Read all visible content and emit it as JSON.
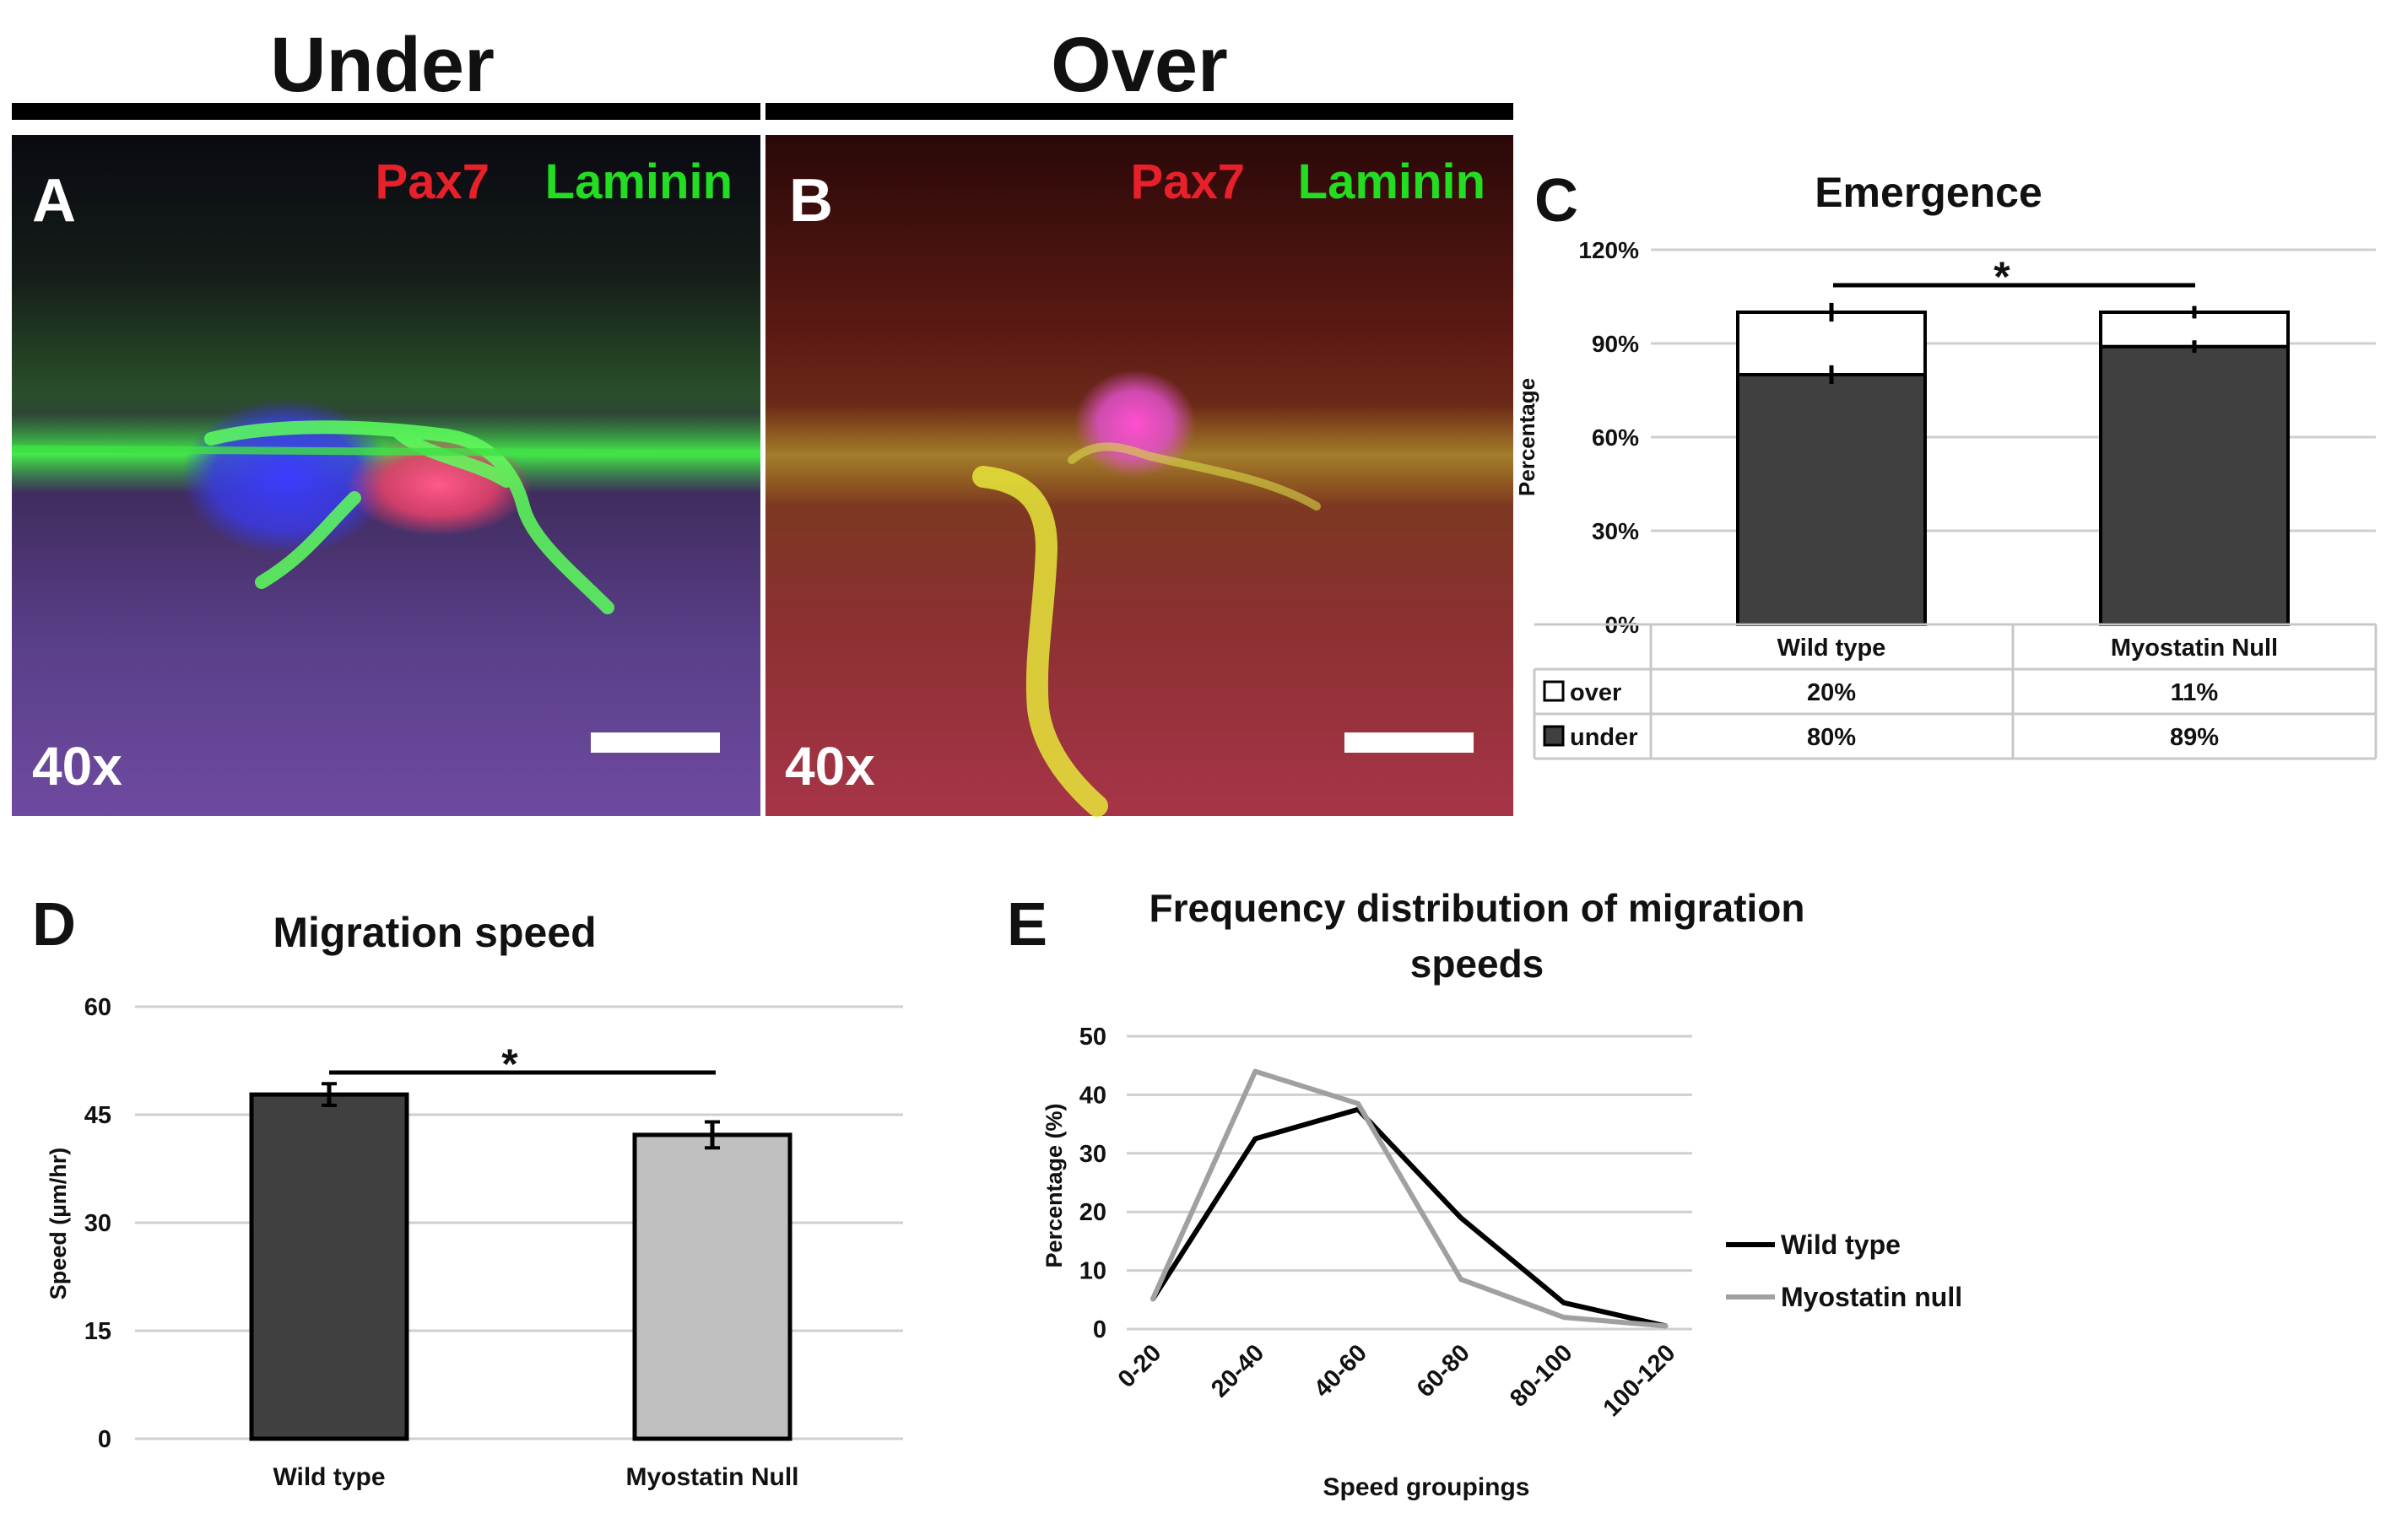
{
  "header": {
    "under_label": "Under",
    "over_label": "Over"
  },
  "micrographs": [
    {
      "panel_letter": "A",
      "stain_red": "Pax7",
      "stain_green": "Laminin",
      "magnification": "40x"
    },
    {
      "panel_letter": "B",
      "stain_red": "Pax7",
      "stain_green": "Laminin",
      "magnification": "40x"
    }
  ],
  "colors": {
    "stain_red": "#e8202a",
    "stain_green": "#22dd22",
    "under_bar": "#404040",
    "wild_type_bar": "#404040",
    "myostatin_bar": "#c0c0c0",
    "wild_type_line": "#000000",
    "myostatin_line": "#a0a0a0",
    "gridline": "#cfcfcf"
  },
  "panel_c": {
    "letter": "C",
    "significance_mark": "*",
    "table_rows": [
      {
        "label": "over",
        "values": [
          "20%",
          "11%"
        ]
      },
      {
        "label": "under",
        "values": [
          "80%",
          "89%"
        ]
      }
    ]
  },
  "panel_d": {
    "letter": "D",
    "significance_mark": "*"
  },
  "panel_e": {
    "letter": "E",
    "title_line1": "Frequency distribution of migration",
    "title_line2": "speeds"
  },
  "chart_data": [
    {
      "id": "C",
      "type": "bar",
      "stacked": true,
      "title": "Emergence",
      "ylabel": "Percentage",
      "xlabel": "",
      "ylim": [
        0,
        120
      ],
      "y_ticks": [
        "0%",
        "30%",
        "60%",
        "90%",
        "120%"
      ],
      "y_tick_values": [
        0,
        30,
        60,
        90,
        120
      ],
      "categories": [
        "Wild type",
        "Myostatin Null"
      ],
      "series": [
        {
          "name": "under",
          "values": [
            80,
            89
          ],
          "color": "#404040"
        },
        {
          "name": "over",
          "values": [
            20,
            11
          ],
          "color": "#ffffff"
        }
      ],
      "error_bars": {
        "under": [
          3,
          2
        ],
        "over": [
          3,
          2
        ]
      },
      "grid": true,
      "legend": "data-table"
    },
    {
      "id": "D",
      "type": "bar",
      "title": "Migration speed",
      "ylabel": "Speed (µm/hr)",
      "xlabel": "",
      "ylim": [
        0,
        60
      ],
      "y_ticks": [
        "0",
        "15",
        "30",
        "45",
        "60"
      ],
      "y_tick_values": [
        0,
        15,
        30,
        45,
        60
      ],
      "categories": [
        "Wild type",
        "Myostatin Null"
      ],
      "values": [
        47.8,
        42.2
      ],
      "errors": [
        1.5,
        1.8
      ],
      "bar_colors": [
        "#404040",
        "#c0c0c0"
      ],
      "grid": true
    },
    {
      "id": "E",
      "type": "line",
      "title": "Frequency distribution of migration speeds",
      "ylabel": "Percentage (%)",
      "xlabel": "Speed groupings",
      "ylim": [
        0,
        50
      ],
      "y_ticks": [
        "0",
        "10",
        "20",
        "30",
        "40",
        "50"
      ],
      "y_tick_values": [
        0,
        10,
        20,
        30,
        40,
        50
      ],
      "categories": [
        "0-20",
        "20-40",
        "40-60",
        "60-80",
        "80-100",
        "100-120"
      ],
      "series": [
        {
          "name": "Wild type",
          "values": [
            5,
            32.5,
            37.5,
            19,
            4.5,
            0.5
          ],
          "color": "#000000"
        },
        {
          "name": "Myostatin null",
          "values": [
            5,
            44,
            38.5,
            8.5,
            2,
            0.5
          ],
          "color": "#a0a0a0"
        }
      ],
      "grid": true,
      "legend": "right"
    }
  ]
}
